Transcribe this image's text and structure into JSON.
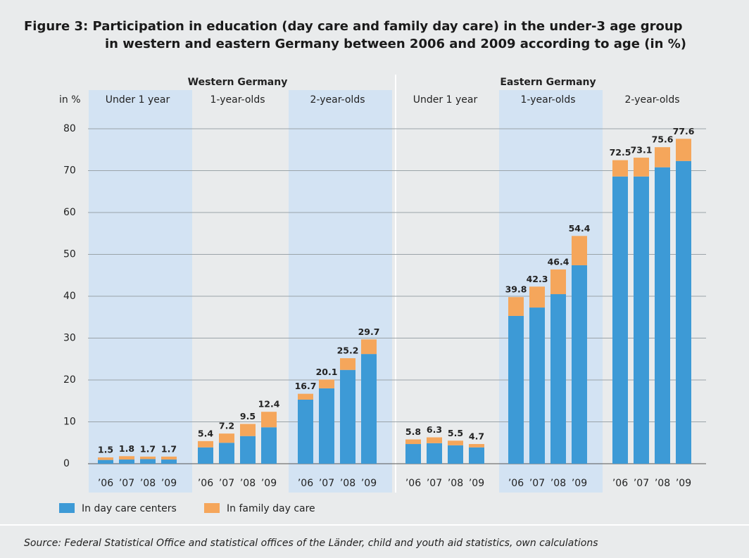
{
  "chart_data": {
    "type": "bar",
    "stacked": true,
    "title": [
      "Figure 3: Participation in education (day care and family day care) in the under-3 age group",
      "in western and eastern Germany between 2006 and 2009 according to age (in %)"
    ],
    "y_label": "in %",
    "regions": [
      {
        "name": "Western Germany",
        "groups": [
          "Under 1 year",
          "1-year-olds",
          "2-year-olds"
        ]
      },
      {
        "name": "Eastern Germany",
        "groups": [
          "Under 1 year",
          "1-year-olds",
          "2-year-olds"
        ]
      }
    ],
    "categories": [
      "’06",
      "’07",
      "’08",
      "’09",
      "’06",
      "’07",
      "’08",
      "’09",
      "’06",
      "’07",
      "’08",
      "’09",
      "’06",
      "’07",
      "’08",
      "’09",
      "’06",
      "’07",
      "’08",
      "’09",
      "’06",
      "’07",
      "’08",
      "’09"
    ],
    "series": [
      {
        "name": "In day care centers",
        "color": "#3d9ad6",
        "values": [
          0.9,
          1.0,
          1.1,
          1.0,
          3.9,
          5.0,
          6.6,
          8.7,
          15.3,
          18.0,
          22.4,
          26.2,
          4.7,
          4.9,
          4.4,
          3.9,
          35.3,
          37.3,
          40.5,
          47.4,
          68.6,
          68.6,
          70.8,
          72.3
        ]
      },
      {
        "name": "In family day care",
        "color": "#f5a65b",
        "values": [
          0.6,
          0.8,
          0.6,
          0.7,
          1.5,
          2.2,
          2.9,
          3.7,
          1.4,
          2.1,
          2.8,
          3.5,
          1.1,
          1.4,
          1.1,
          0.8,
          4.5,
          5.0,
          5.9,
          7.0,
          3.9,
          4.5,
          4.8,
          5.3
        ]
      }
    ],
    "totals": [
      1.5,
      1.8,
      1.7,
      1.7,
      5.4,
      7.2,
      9.5,
      12.4,
      16.7,
      20.1,
      25.2,
      29.7,
      5.8,
      6.3,
      5.5,
      4.7,
      39.8,
      42.3,
      46.4,
      54.4,
      72.5,
      73.1,
      75.6,
      77.6
    ],
    "ylim": [
      0,
      80
    ],
    "yticks": [
      0,
      10,
      20,
      30,
      40,
      50,
      60,
      70,
      80
    ],
    "grid": true,
    "source": "Source: Federal Statistical Office and statistical offices of the Länder, child and youth aid statistics, own calculations"
  }
}
